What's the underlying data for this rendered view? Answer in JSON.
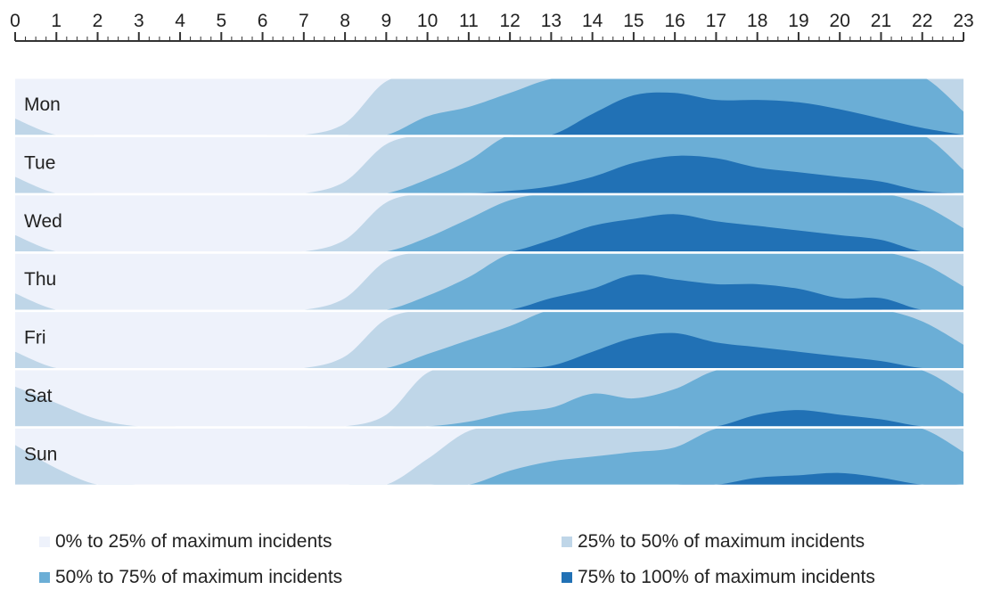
{
  "chart_data": {
    "type": "area",
    "hours": [
      0,
      1,
      2,
      3,
      4,
      5,
      6,
      7,
      8,
      9,
      10,
      11,
      12,
      13,
      14,
      15,
      16,
      17,
      18,
      19,
      20,
      21,
      22,
      23
    ],
    "days": [
      {
        "label": "Mon",
        "values": [
          0.32,
          0.22,
          0.15,
          0.1,
          0.06,
          0.05,
          0.06,
          0.14,
          0.3,
          0.48,
          0.58,
          0.62,
          0.68,
          0.74,
          0.84,
          0.92,
          0.93,
          0.9,
          0.9,
          0.89,
          0.86,
          0.82,
          0.78,
          0.6
        ]
      },
      {
        "label": "Tue",
        "values": [
          0.32,
          0.22,
          0.15,
          0.1,
          0.06,
          0.05,
          0.06,
          0.14,
          0.3,
          0.46,
          0.56,
          0.64,
          0.76,
          0.78,
          0.82,
          0.88,
          0.91,
          0.9,
          0.86,
          0.84,
          0.82,
          0.8,
          0.76,
          0.6
        ]
      },
      {
        "label": "Wed",
        "values": [
          0.32,
          0.22,
          0.15,
          0.1,
          0.06,
          0.05,
          0.06,
          0.14,
          0.3,
          0.46,
          0.56,
          0.64,
          0.72,
          0.8,
          0.86,
          0.89,
          0.91,
          0.88,
          0.86,
          0.84,
          0.82,
          0.8,
          0.7,
          0.6
        ]
      },
      {
        "label": "Thu",
        "values": [
          0.32,
          0.22,
          0.15,
          0.1,
          0.06,
          0.05,
          0.06,
          0.14,
          0.3,
          0.46,
          0.56,
          0.64,
          0.74,
          0.8,
          0.84,
          0.9,
          0.88,
          0.86,
          0.86,
          0.84,
          0.8,
          0.8,
          0.7,
          0.6
        ]
      },
      {
        "label": "Fri",
        "values": [
          0.32,
          0.22,
          0.15,
          0.1,
          0.06,
          0.05,
          0.06,
          0.14,
          0.3,
          0.46,
          0.56,
          0.62,
          0.68,
          0.76,
          0.82,
          0.88,
          0.9,
          0.86,
          0.84,
          0.82,
          0.8,
          0.78,
          0.7,
          0.6
        ]
      },
      {
        "label": "Sat",
        "values": [
          0.42,
          0.35,
          0.28,
          0.2,
          0.14,
          0.1,
          0.12,
          0.16,
          0.22,
          0.3,
          0.48,
          0.52,
          0.56,
          0.58,
          0.64,
          0.62,
          0.66,
          0.74,
          0.8,
          0.82,
          0.8,
          0.78,
          0.74,
          0.64
        ]
      },
      {
        "label": "Sun",
        "values": [
          0.42,
          0.32,
          0.22,
          0.15,
          0.12,
          0.1,
          0.1,
          0.12,
          0.16,
          0.24,
          0.36,
          0.48,
          0.56,
          0.6,
          0.62,
          0.64,
          0.66,
          0.74,
          0.78,
          0.79,
          0.8,
          0.78,
          0.74,
          0.64
        ]
      }
    ],
    "bands": [
      {
        "min": 0.0,
        "max": 0.25,
        "color": "#eef2fb",
        "label": "0% to 25% of maximum incidents"
      },
      {
        "min": 0.25,
        "max": 0.5,
        "color": "#bfd6e8",
        "label": "25% to 50% of maximum incidents"
      },
      {
        "min": 0.5,
        "max": 0.75,
        "color": "#6baed6",
        "label": "50% to 75% of maximum incidents"
      },
      {
        "min": 0.75,
        "max": 1.0,
        "color": "#2171b5",
        "label": "75% to 100% of maximum incidents"
      }
    ],
    "x_range": [
      0,
      23
    ],
    "colors": {
      "axis": "#333333",
      "separator": "#ffffff",
      "text": "#222222"
    }
  }
}
